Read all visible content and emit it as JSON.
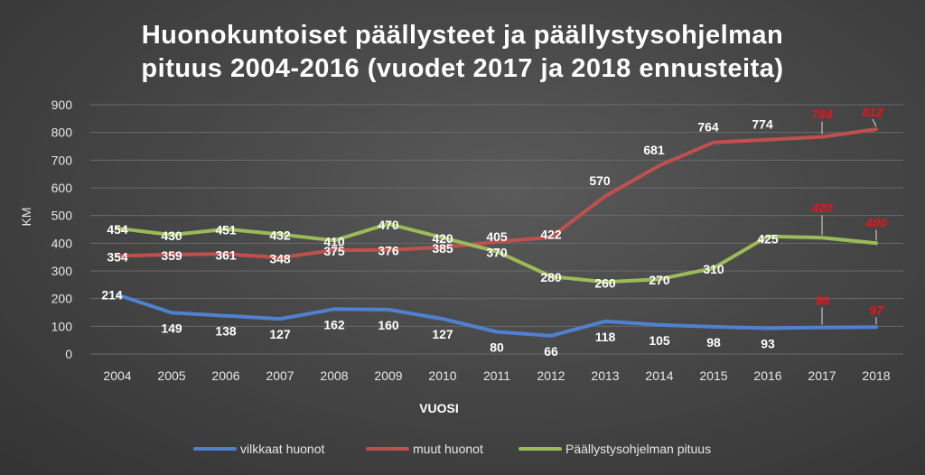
{
  "chart_data": {
    "type": "line",
    "title_lines": [
      "Huonokuntoiset päällysteet ja päällystysohjelman",
      "pituus 2004-2016 (vuodet 2017 ja 2018 ennusteita)"
    ],
    "xlabel": "VUOSI",
    "ylabel": "KM",
    "ylim": [
      0,
      900
    ],
    "yticks": [
      0,
      100,
      200,
      300,
      400,
      500,
      600,
      700,
      800,
      900
    ],
    "categories": [
      "2004",
      "2005",
      "2006",
      "2007",
      "2008",
      "2009",
      "2010",
      "2011",
      "2012",
      "2013",
      "2014",
      "2015",
      "2016",
      "2017",
      "2018"
    ],
    "forecast_from_index": 13,
    "grid": true,
    "legend_position": "bottom",
    "label_color": "#ffffff",
    "forecast_label_color": "#e8141b",
    "series": [
      {
        "name": "vilkkaat huonot",
        "color": "#4f81d0",
        "values": [
          214,
          149,
          138,
          127,
          162,
          160,
          127,
          80,
          66,
          118,
          105,
          98,
          93,
          96,
          97
        ],
        "labels": [
          "214",
          "149",
          "138",
          "127",
          "162",
          "160",
          "127",
          "80",
          "66",
          "118",
          "105",
          "98",
          "93",
          "96",
          "97"
        ]
      },
      {
        "name": "muut huonot",
        "color": "#c0504d",
        "values": [
          354,
          359,
          361,
          348,
          375,
          376,
          385,
          405,
          422,
          570,
          681,
          764,
          774,
          784,
          812
        ],
        "labels": [
          "354",
          "359",
          "361",
          "348",
          "375",
          "376",
          "385",
          "405",
          "422",
          "570",
          "681",
          "764",
          "774",
          "784",
          "812"
        ]
      },
      {
        "name": "Päällystysohjelman pituus",
        "color": "#9bbb59",
        "values": [
          454,
          430,
          451,
          432,
          410,
          470,
          420,
          370,
          280,
          260,
          270,
          310,
          425,
          420,
          400
        ],
        "labels": [
          "454",
          "430",
          "451",
          "432",
          "410",
          "470",
          "420",
          "370",
          "280",
          "260",
          "270",
          "310",
          "425",
          "420",
          "400"
        ]
      }
    ]
  }
}
